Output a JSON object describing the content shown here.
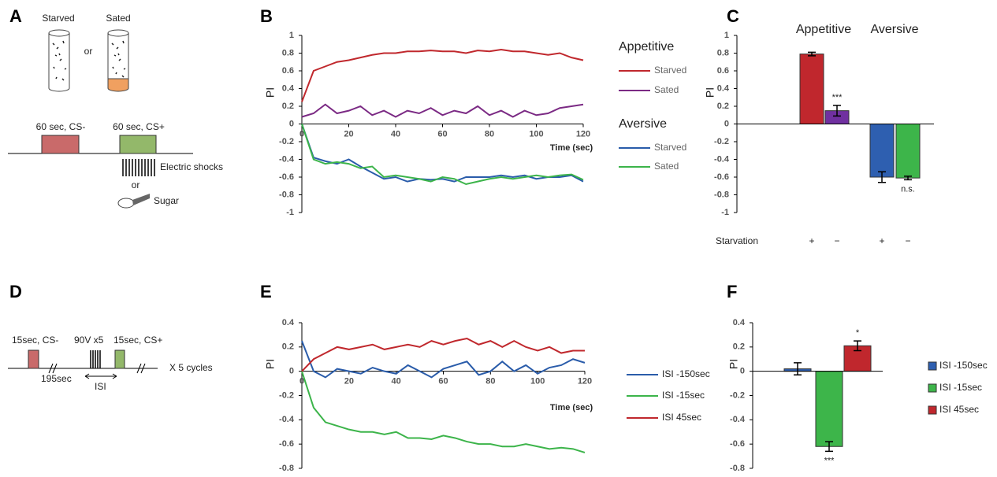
{
  "chart_data": [
    {
      "type": "line",
      "panel_label": "B",
      "y_label": "PI",
      "x_label": "Time (sec)",
      "x": [
        0,
        5,
        10,
        15,
        20,
        25,
        30,
        35,
        40,
        45,
        50,
        55,
        60,
        65,
        70,
        75,
        80,
        85,
        90,
        95,
        100,
        105,
        110,
        115,
        120
      ],
      "xlim": [
        0,
        120
      ],
      "xticks": [
        0,
        20,
        40,
        60,
        80,
        100,
        120
      ],
      "ylim": [
        -1,
        1
      ],
      "yticks": [
        -1,
        -0.8,
        -0.6,
        -0.4,
        -0.2,
        0,
        0.2,
        0.4,
        0.6,
        0.8,
        1
      ],
      "series": [
        {
          "group": "Appetitive",
          "name": "Starved",
          "color": "#c0282d",
          "values": [
            0.25,
            0.6,
            0.65,
            0.7,
            0.72,
            0.75,
            0.78,
            0.8,
            0.8,
            0.82,
            0.82,
            0.83,
            0.82,
            0.82,
            0.8,
            0.83,
            0.82,
            0.84,
            0.82,
            0.82,
            0.8,
            0.78,
            0.8,
            0.75,
            0.72
          ]
        },
        {
          "group": "Appetitive",
          "name": "Sated",
          "color": "#7b2a84",
          "values": [
            0.08,
            0.12,
            0.22,
            0.12,
            0.15,
            0.2,
            0.1,
            0.15,
            0.08,
            0.15,
            0.12,
            0.18,
            0.1,
            0.15,
            0.12,
            0.2,
            0.1,
            0.15,
            0.08,
            0.15,
            0.1,
            0.12,
            0.18,
            0.2,
            0.22
          ]
        },
        {
          "group": "Aversive",
          "name": "Starved",
          "color": "#2a5caa",
          "values": [
            0,
            -0.38,
            -0.42,
            -0.45,
            -0.4,
            -0.48,
            -0.55,
            -0.62,
            -0.6,
            -0.65,
            -0.62,
            -0.63,
            -0.62,
            -0.65,
            -0.6,
            -0.6,
            -0.6,
            -0.58,
            -0.6,
            -0.58,
            -0.62,
            -0.6,
            -0.6,
            -0.58,
            -0.65
          ]
        },
        {
          "group": "Aversive",
          "name": "Sated",
          "color": "#3cb44a",
          "values": [
            0,
            -0.4,
            -0.45,
            -0.43,
            -0.45,
            -0.5,
            -0.48,
            -0.6,
            -0.58,
            -0.6,
            -0.62,
            -0.65,
            -0.6,
            -0.62,
            -0.68,
            -0.65,
            -0.62,
            -0.6,
            -0.62,
            -0.6,
            -0.58,
            -0.6,
            -0.58,
            -0.57,
            -0.63
          ]
        }
      ]
    },
    {
      "type": "bar",
      "panel_label": "C",
      "y_label": "PI",
      "groups": [
        "Appetitive",
        "Aversive"
      ],
      "category_axis_label": "Starvation",
      "categories": [
        "+",
        "−",
        "+",
        "−"
      ],
      "values": [
        0.79,
        0.15,
        -0.6,
        -0.61
      ],
      "errors": [
        0.02,
        0.06,
        0.06,
        0.02
      ],
      "colors": [
        "#c0272d",
        "#7030a0",
        "#2e5fb0",
        "#3db54a"
      ],
      "significance": [
        null,
        "***",
        null,
        "n.s."
      ],
      "ylim": [
        -1,
        1
      ],
      "yticks": [
        -1,
        -0.8,
        -0.6,
        -0.4,
        -0.2,
        0,
        0.2,
        0.4,
        0.6,
        0.8,
        1
      ]
    },
    {
      "type": "line",
      "panel_label": "E",
      "y_label": "PI",
      "x_label": "Time (sec)",
      "x": [
        0,
        5,
        10,
        15,
        20,
        25,
        30,
        35,
        40,
        45,
        50,
        55,
        60,
        65,
        70,
        75,
        80,
        85,
        90,
        95,
        100,
        105,
        110,
        115,
        120
      ],
      "xlim": [
        0,
        120
      ],
      "xticks": [
        0,
        20,
        40,
        60,
        80,
        100,
        120
      ],
      "ylim": [
        -0.8,
        0.4
      ],
      "yticks": [
        -0.8,
        -0.6,
        -0.4,
        -0.2,
        0,
        0.2,
        0.4
      ],
      "series": [
        {
          "name": "ISI -150sec",
          "color": "#2a5caa",
          "values": [
            0.25,
            0,
            -0.05,
            0.02,
            0,
            -0.02,
            0.03,
            0,
            -0.02,
            0.05,
            0,
            -0.05,
            0.02,
            0.05,
            0.08,
            -0.03,
            0,
            0.08,
            0,
            0.05,
            -0.02,
            0.03,
            0.05,
            0.1,
            0.07
          ]
        },
        {
          "name": "ISI -15sec",
          "color": "#3cb44a",
          "values": [
            0,
            -0.3,
            -0.42,
            -0.45,
            -0.48,
            -0.5,
            -0.5,
            -0.52,
            -0.5,
            -0.55,
            -0.55,
            -0.56,
            -0.53,
            -0.55,
            -0.58,
            -0.6,
            -0.6,
            -0.62,
            -0.62,
            -0.6,
            -0.62,
            -0.64,
            -0.63,
            -0.64,
            -0.67
          ]
        },
        {
          "name": "ISI 45sec",
          "color": "#c0282d",
          "values": [
            0,
            0.1,
            0.15,
            0.2,
            0.18,
            0.2,
            0.22,
            0.18,
            0.2,
            0.22,
            0.2,
            0.25,
            0.22,
            0.25,
            0.27,
            0.22,
            0.25,
            0.2,
            0.25,
            0.2,
            0.17,
            0.2,
            0.15,
            0.17,
            0.17
          ]
        }
      ]
    },
    {
      "type": "bar",
      "panel_label": "F",
      "y_label": "PI",
      "categories": [
        "ISI -150sec",
        "ISI -15sec",
        "ISI 45sec"
      ],
      "values": [
        0.02,
        -0.62,
        0.21
      ],
      "errors": [
        0.05,
        0.04,
        0.04
      ],
      "colors": [
        "#2e5fb0",
        "#3db54a",
        "#c0272d"
      ],
      "significance": [
        null,
        "***",
        "*"
      ],
      "ylim": [
        -0.8,
        0.4
      ],
      "yticks": [
        -0.8,
        -0.6,
        -0.4,
        -0.2,
        0,
        0.2,
        0.4
      ]
    }
  ],
  "diagram_a": {
    "panel_label": "A",
    "conditions": [
      "Starved",
      "Sated"
    ],
    "connector": "or",
    "stimuli": [
      "60 sec, CS-",
      "60 sec, CS+"
    ],
    "unconditioned": [
      "Electric shocks",
      "Sugar"
    ],
    "alternative": "or"
  },
  "diagram_d": {
    "panel_label": "D",
    "stimuli": [
      "15sec, CS-",
      "90V x5",
      "15sec, CS+"
    ],
    "interval": "195sec",
    "isi": "ISI",
    "repeat": "X 5 cycles"
  }
}
